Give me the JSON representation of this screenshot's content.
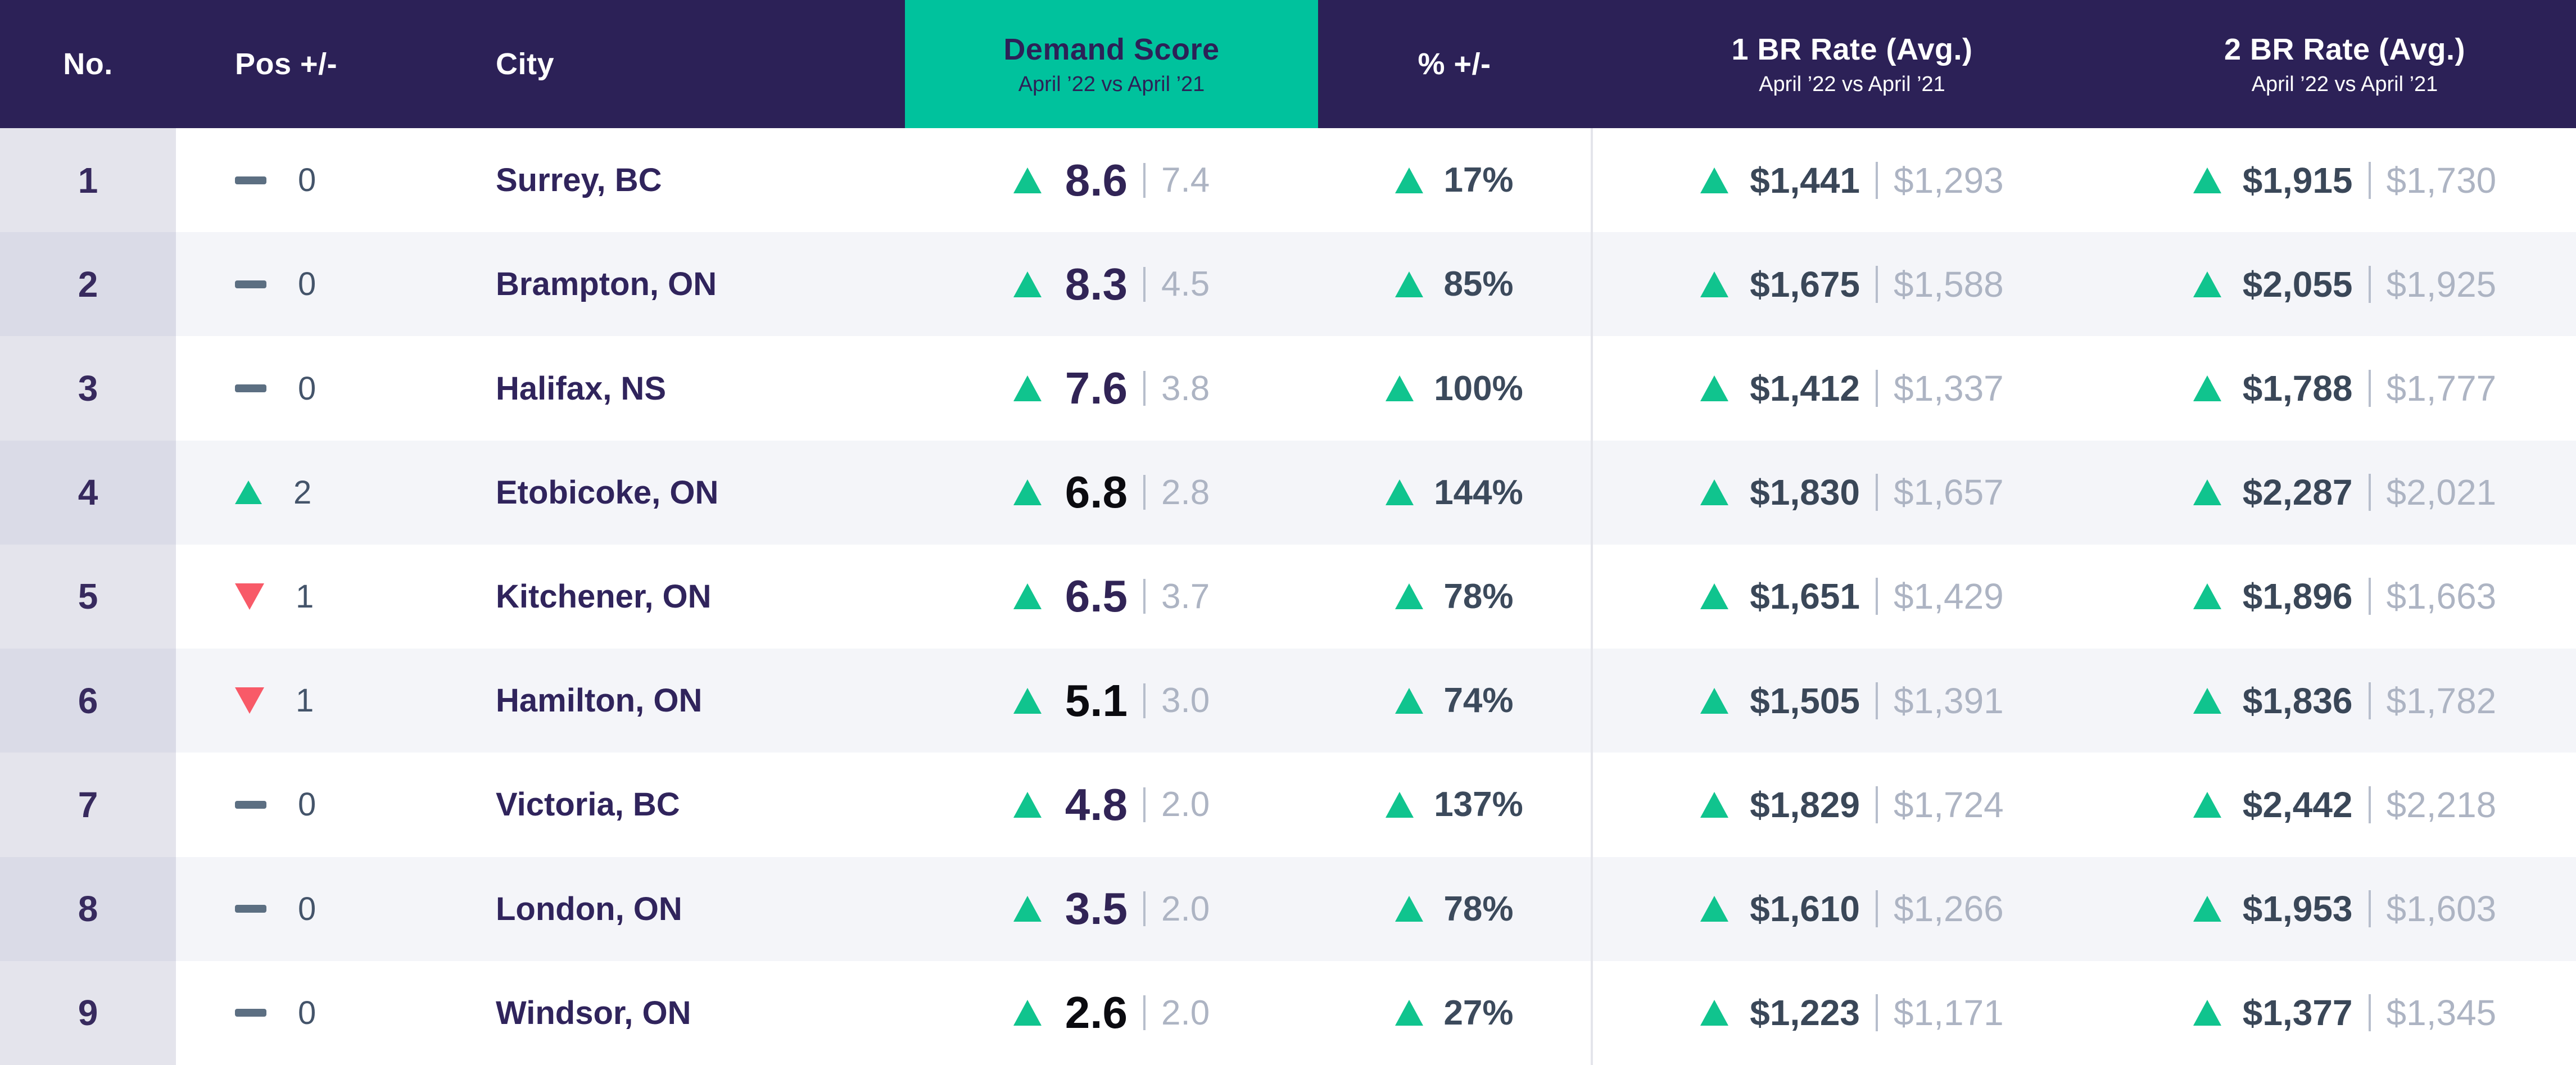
{
  "chart_data": {
    "type": "table",
    "header": {
      "no": "No.",
      "pos": "Pos +/-",
      "city": "City",
      "demand": {
        "title": "Demand Score",
        "subtitle": "April ’22 vs April ’21"
      },
      "pct": "% +/-",
      "br1": {
        "title": "1 BR Rate (Avg.)",
        "subtitle": "April ’22 vs April ’21"
      },
      "br2": {
        "title": "2 BR Rate (Avg.)",
        "subtitle": "April ’22 vs April ’21"
      }
    },
    "rows": [
      {
        "no": "1",
        "pos_dir": "same",
        "pos_value": "0",
        "city": "Surrey, BC",
        "score": "8.6",
        "score_prev": "7.4",
        "score_black": false,
        "pct": "17%",
        "br1": "$1,441",
        "br1_prev": "$1,293",
        "br2": "$1,915",
        "br2_prev": "$1,730"
      },
      {
        "no": "2",
        "pos_dir": "same",
        "pos_value": "0",
        "city": "Brampton, ON",
        "score": "8.3",
        "score_prev": "4.5",
        "score_black": false,
        "pct": "85%",
        "br1": "$1,675",
        "br1_prev": "$1,588",
        "br2": "$2,055",
        "br2_prev": "$1,925"
      },
      {
        "no": "3",
        "pos_dir": "same",
        "pos_value": "0",
        "city": "Halifax, NS",
        "score": "7.6",
        "score_prev": "3.8",
        "score_black": false,
        "pct": "100%",
        "br1": "$1,412",
        "br1_prev": "$1,337",
        "br2": "$1,788",
        "br2_prev": "$1,777"
      },
      {
        "no": "4",
        "pos_dir": "up",
        "pos_value": "2",
        "city": "Etobicoke, ON",
        "score": "6.8",
        "score_prev": "2.8",
        "score_black": true,
        "pct": "144%",
        "br1": "$1,830",
        "br1_prev": "$1,657",
        "br2": "$2,287",
        "br2_prev": "$2,021"
      },
      {
        "no": "5",
        "pos_dir": "down",
        "pos_value": "1",
        "city": "Kitchener, ON",
        "score": "6.5",
        "score_prev": "3.7",
        "score_black": false,
        "pct": "78%",
        "br1": "$1,651",
        "br1_prev": "$1,429",
        "br2": "$1,896",
        "br2_prev": "$1,663"
      },
      {
        "no": "6",
        "pos_dir": "down",
        "pos_value": "1",
        "city": "Hamilton, ON",
        "score": "5.1",
        "score_prev": "3.0",
        "score_black": true,
        "pct": "74%",
        "br1": "$1,505",
        "br1_prev": "$1,391",
        "br2": "$1,836",
        "br2_prev": "$1,782"
      },
      {
        "no": "7",
        "pos_dir": "same",
        "pos_value": "0",
        "city": "Victoria, BC",
        "score": "4.8",
        "score_prev": "2.0",
        "score_black": false,
        "pct": "137%",
        "br1": "$1,829",
        "br1_prev": "$1,724",
        "br2": "$2,442",
        "br2_prev": "$2,218"
      },
      {
        "no": "8",
        "pos_dir": "same",
        "pos_value": "0",
        "city": "London, ON",
        "score": "3.5",
        "score_prev": "2.0",
        "score_black": false,
        "pct": "78%",
        "br1": "$1,610",
        "br1_prev": "$1,266",
        "br2": "$1,953",
        "br2_prev": "$1,603"
      },
      {
        "no": "9",
        "pos_dir": "same",
        "pos_value": "0",
        "city": "Windsor, ON",
        "score": "2.6",
        "score_prev": "2.0",
        "score_black": true,
        "pct": "27%",
        "br1": "$1,223",
        "br1_prev": "$1,171",
        "br2": "$1,377",
        "br2_prev": "$1,345"
      }
    ]
  },
  "colors": {
    "header_bg": "#2C2157",
    "accent_teal": "#00C29D",
    "up_green": "#10C48E",
    "down_red": "#F85A68",
    "row_even_bg": "#F4F5F9",
    "row_odd_bg": "#FFFFFF",
    "no_col_odd": "#E4E4EC",
    "no_col_even": "#DADBE7",
    "rank_text": "#372A5E",
    "city_text": "#30245C",
    "score_text": "#312456",
    "score_text_black": "#0B0B10",
    "previous_value_text": "#ADB4C3",
    "percent_text": "#3C4A5C",
    "rate_text": "#3A4758",
    "pos_value_text": "#44546A",
    "dash_icon": "#5C6F82",
    "column_divider": "#E4E5EB"
  }
}
